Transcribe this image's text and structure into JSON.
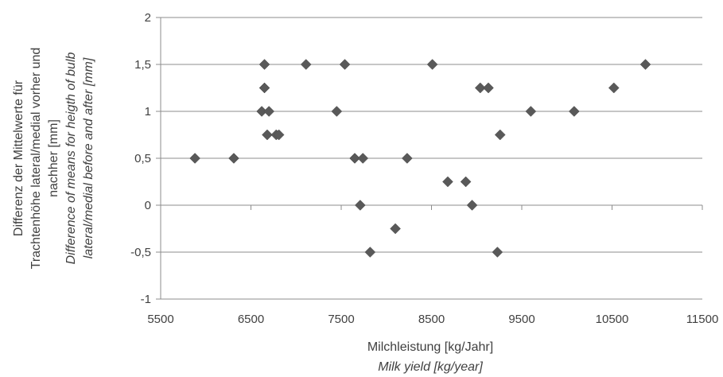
{
  "chart_data": {
    "type": "scatter",
    "xlabel": "Milchleistung [kg/Jahr]",
    "xlabel_en": "Milk yield [kg/year]",
    "ylabel_lines": [
      "Differenz der  Mittelwerte  für",
      "Trachtenhöhe lateral/medial vorher und",
      "nachher  [mm]"
    ],
    "ylabel_en_lines": [
      "Difference of means for heigth of bulb",
      "lateral/medial before and after [mm]"
    ],
    "xlim": [
      5500,
      11500
    ],
    "ylim": [
      -1,
      2
    ],
    "x_ticks": [
      5500,
      6500,
      7500,
      8500,
      9500,
      10500,
      11500
    ],
    "x_tick_labels": [
      "5500",
      "6500",
      "7500",
      "8500",
      "9500",
      "10500",
      "11500"
    ],
    "y_ticks": [
      -1,
      -0.5,
      0,
      0.5,
      1,
      1.5,
      2
    ],
    "y_tick_labels": [
      "-1",
      "-0,5",
      "0",
      "0,5",
      "1",
      "1,5",
      "2"
    ],
    "grid": "horizontal",
    "marker_color": "#595959",
    "points": [
      {
        "x": 5880,
        "y": 0.5
      },
      {
        "x": 6310,
        "y": 0.5
      },
      {
        "x": 6620,
        "y": 1.0
      },
      {
        "x": 6650,
        "y": 1.5
      },
      {
        "x": 6650,
        "y": 1.25
      },
      {
        "x": 6680,
        "y": 0.75
      },
      {
        "x": 6700,
        "y": 1.0
      },
      {
        "x": 6780,
        "y": 0.75
      },
      {
        "x": 6810,
        "y": 0.75
      },
      {
        "x": 7110,
        "y": 1.5
      },
      {
        "x": 7450,
        "y": 1.0
      },
      {
        "x": 7540,
        "y": 1.5
      },
      {
        "x": 7650,
        "y": 0.5
      },
      {
        "x": 7710,
        "y": 0.0
      },
      {
        "x": 7740,
        "y": 0.5
      },
      {
        "x": 7820,
        "y": -0.5
      },
      {
        "x": 8100,
        "y": -0.25
      },
      {
        "x": 8230,
        "y": 0.5
      },
      {
        "x": 8510,
        "y": 1.5
      },
      {
        "x": 8680,
        "y": 0.25
      },
      {
        "x": 8880,
        "y": 0.25
      },
      {
        "x": 8950,
        "y": 0.0
      },
      {
        "x": 9040,
        "y": 1.25
      },
      {
        "x": 9130,
        "y": 1.25
      },
      {
        "x": 9230,
        "y": -0.5
      },
      {
        "x": 9260,
        "y": 0.75
      },
      {
        "x": 9600,
        "y": 1.0
      },
      {
        "x": 10080,
        "y": 1.0
      },
      {
        "x": 10520,
        "y": 1.25
      },
      {
        "x": 10870,
        "y": 1.5
      }
    ]
  }
}
